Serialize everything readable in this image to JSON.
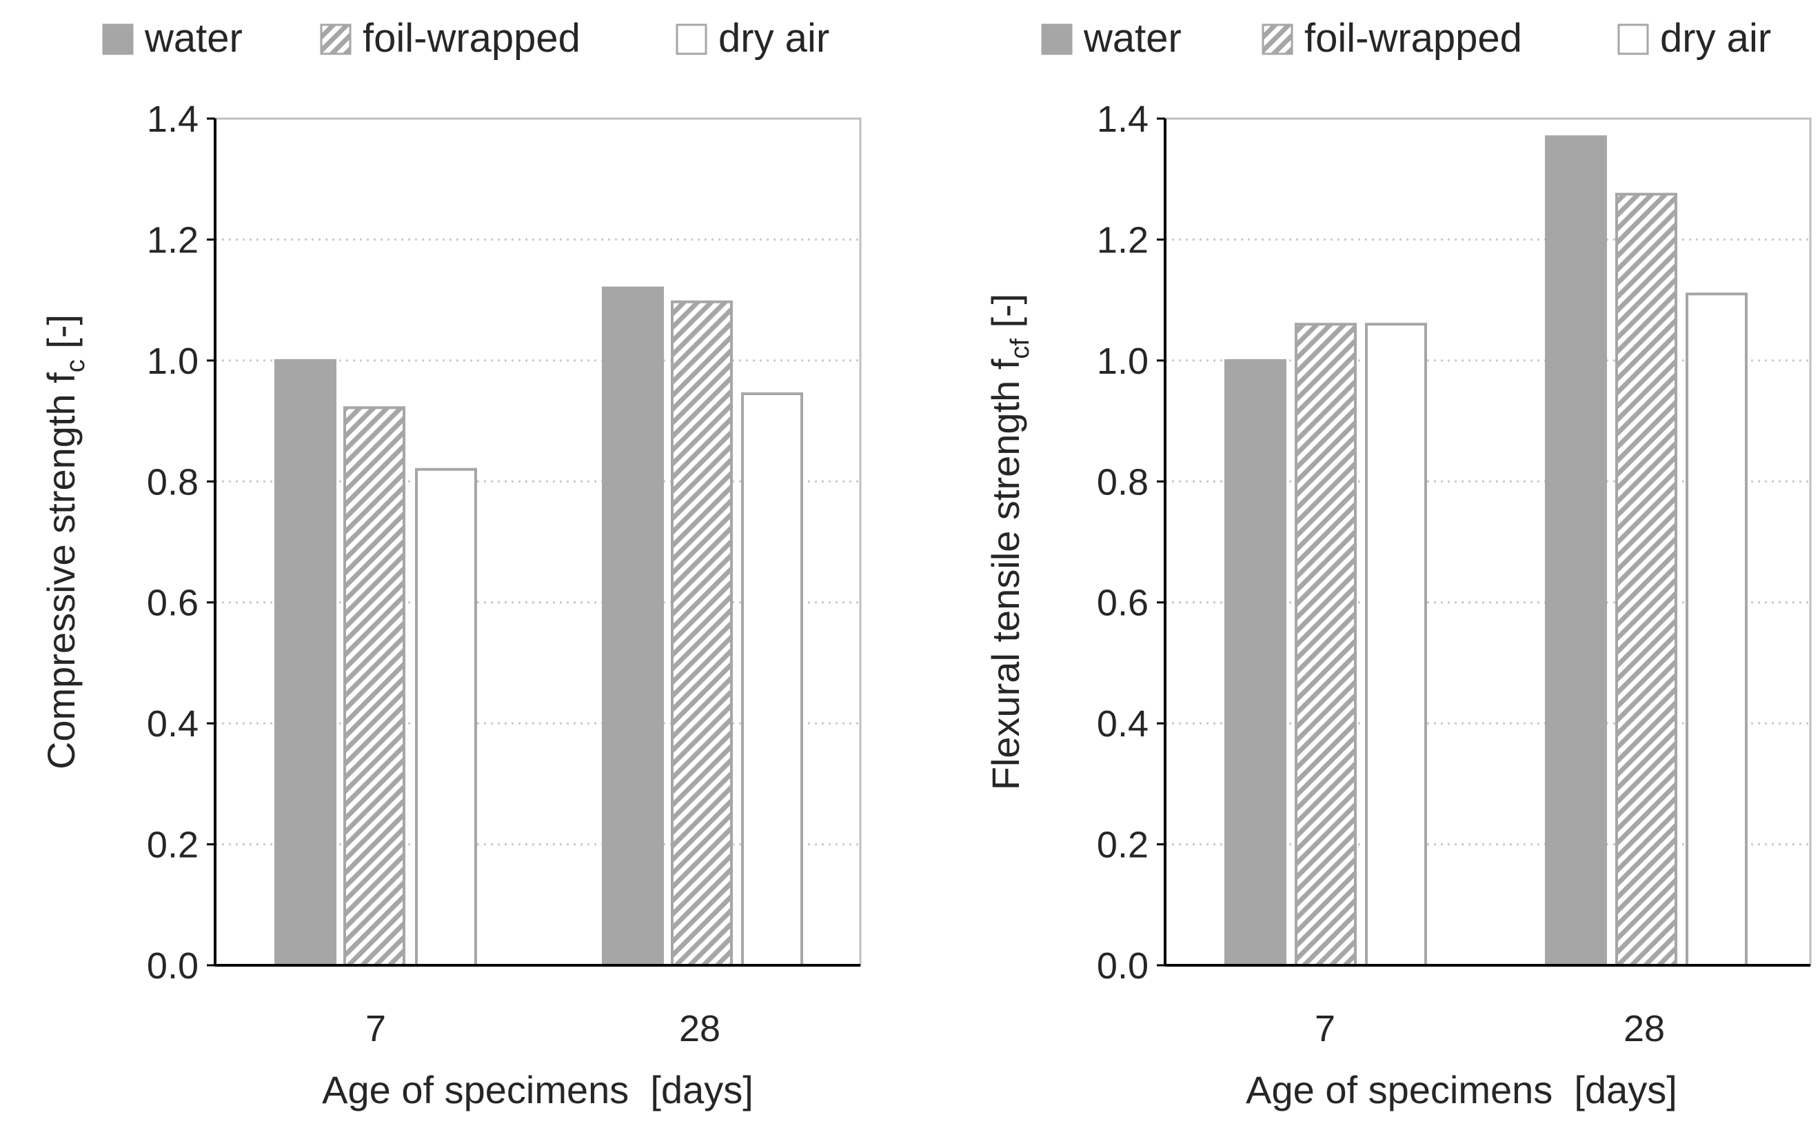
{
  "chart_data": [
    {
      "type": "bar",
      "panel": "left",
      "categories": [
        "7",
        "28"
      ],
      "series": [
        {
          "name": "water",
          "values": [
            1.0,
            1.12
          ]
        },
        {
          "name": "foil-wrapped",
          "values": [
            0.922,
            1.097
          ]
        },
        {
          "name": "dry air",
          "values": [
            0.82,
            0.945
          ]
        }
      ],
      "xlabel": "Age of specimens  [days]",
      "ylabel": {
        "main": "Compressive strength f",
        "sub": "c",
        "suffix": " [-]"
      },
      "ylim": [
        0,
        1.4
      ],
      "yticks": [
        "0.0",
        "0.2",
        "0.4",
        "0.6",
        "0.8",
        "1.0",
        "1.2",
        "1.4"
      ],
      "grid": "horizontal dotted",
      "legend_position": "top"
    },
    {
      "type": "bar",
      "panel": "right",
      "categories": [
        "7",
        "28"
      ],
      "series": [
        {
          "name": "water",
          "values": [
            1.0,
            1.37
          ]
        },
        {
          "name": "foil-wrapped",
          "values": [
            1.06,
            1.275
          ]
        },
        {
          "name": "dry air",
          "values": [
            1.06,
            1.11
          ]
        }
      ],
      "xlabel": "Age of specimens  [days]",
      "ylabel": {
        "main": "Flexural tensile strength f",
        "sub": "cf",
        "suffix": " [-]"
      },
      "ylim": [
        0,
        1.4
      ],
      "yticks": [
        "0.0",
        "0.2",
        "0.4",
        "0.6",
        "0.8",
        "1.0",
        "1.2",
        "1.4"
      ],
      "grid": "horizontal dotted",
      "legend_position": "top"
    }
  ],
  "colors": {
    "water_fill": "#a6a6a6",
    "bar_edge": "#a6a6a6",
    "hatch": "#a6a6a6",
    "dry_fill": "#ffffff",
    "axis": "#000000",
    "frame": "#bfbfbf",
    "grid": "#c9c9c9",
    "text": "#262626"
  }
}
